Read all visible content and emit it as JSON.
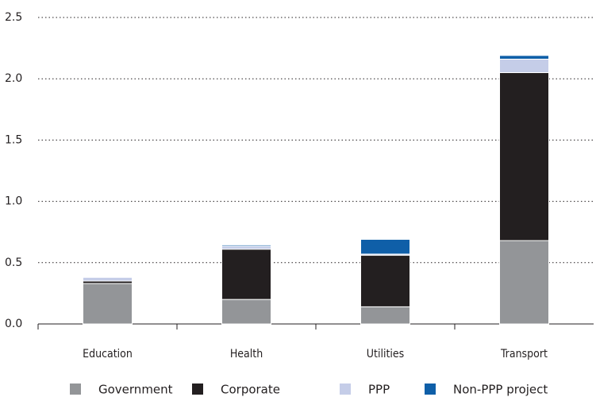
{
  "chart_data": {
    "type": "stacked_bar",
    "categories": [
      "Education",
      "Health",
      "Utilities",
      "Transport"
    ],
    "series": [
      {
        "name": "Government",
        "color": "#939598",
        "values": [
          0.33,
          0.2,
          0.14,
          0.68
        ]
      },
      {
        "name": "Corporate",
        "color": "#231f20",
        "values": [
          0.02,
          0.41,
          0.42,
          1.37
        ]
      },
      {
        "name": "PPP",
        "color": "#c5cde8",
        "values": [
          0.03,
          0.025,
          0.01,
          0.11
        ]
      },
      {
        "name": "Non-PPP project",
        "color": "#0f5fa8",
        "values": [
          0,
          0.01,
          0.12,
          0.03
        ]
      }
    ],
    "ylim": [
      0,
      2.5
    ],
    "yticks": [
      {
        "value": 0,
        "label": "0.0"
      },
      0.5,
      {
        "value": 1,
        "label": "1.0"
      },
      1.5,
      {
        "value": 2,
        "label": "2.0"
      },
      2.5
    ],
    "grid": true,
    "legend": "bottom"
  }
}
